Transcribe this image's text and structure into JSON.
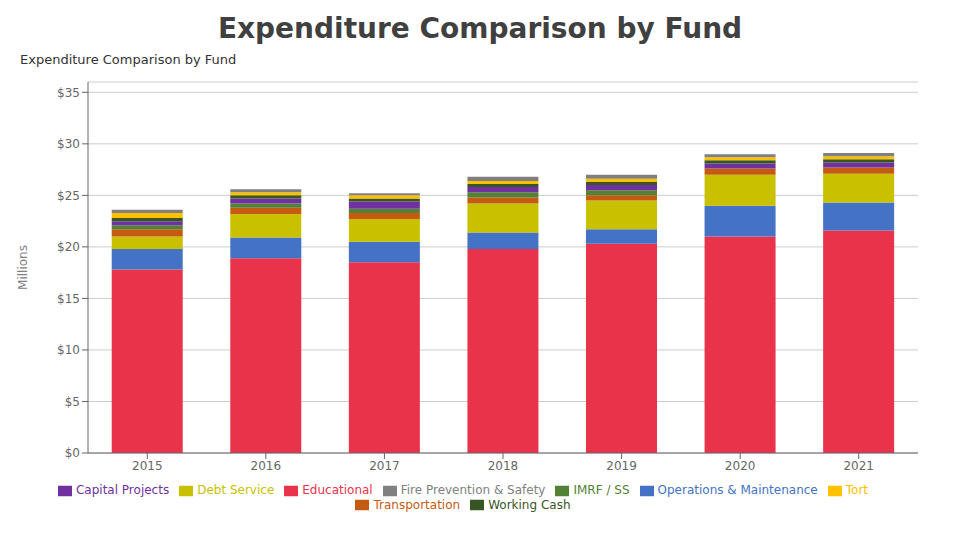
{
  "chart_data": {
    "type": "bar",
    "stacked": true,
    "title": "Expenditure Comparison by Fund",
    "subtitle": "Expenditure Comparison by Fund",
    "y_label": "Millions",
    "categories": [
      "2015",
      "2016",
      "2017",
      "2018",
      "2019",
      "2020",
      "2021"
    ],
    "series": [
      {
        "name": "Educational",
        "color": "#E8334A",
        "values": [
          17.8,
          18.9,
          18.5,
          19.8,
          20.3,
          21.0,
          21.6
        ]
      },
      {
        "name": "Operations & Maintenance",
        "color": "#4472C4",
        "values": [
          2.0,
          2.0,
          2.0,
          1.6,
          1.4,
          3.0,
          2.7
        ]
      },
      {
        "name": "Debt Service",
        "color": "#C9C000",
        "values": [
          1.2,
          2.3,
          2.2,
          2.8,
          2.8,
          3.0,
          2.8
        ]
      },
      {
        "name": "Transportation",
        "color": "#C55A11",
        "values": [
          0.7,
          0.6,
          0.6,
          0.6,
          0.5,
          0.6,
          0.6
        ]
      },
      {
        "name": "IMRF / SS",
        "color": "#538135",
        "values": [
          0.4,
          0.4,
          0.4,
          0.5,
          0.5,
          0.0,
          0.0
        ]
      },
      {
        "name": "Capital Projects",
        "color": "#7030A0",
        "values": [
          0.4,
          0.5,
          0.7,
          0.5,
          0.5,
          0.5,
          0.5
        ]
      },
      {
        "name": "Working Cash",
        "color": "#375623",
        "values": [
          0.3,
          0.3,
          0.3,
          0.3,
          0.3,
          0.3,
          0.3
        ]
      },
      {
        "name": "Tort",
        "color": "#FFC000",
        "values": [
          0.5,
          0.3,
          0.3,
          0.3,
          0.3,
          0.3,
          0.3
        ]
      },
      {
        "name": "Fire Prevention & Safety",
        "color": "#808080",
        "values": [
          0.3,
          0.3,
          0.2,
          0.4,
          0.4,
          0.3,
          0.3
        ]
      }
    ],
    "ylim": [
      0,
      36
    ],
    "yticks": [
      {
        "value": 0,
        "label": "$0"
      },
      {
        "value": 5,
        "label": "$5"
      },
      {
        "value": 10,
        "label": "$10"
      },
      {
        "value": 15,
        "label": "$15"
      },
      {
        "value": 20,
        "label": "$20"
      },
      {
        "value": 25,
        "label": "$25"
      },
      {
        "value": 30,
        "label": "$30"
      },
      {
        "value": 35,
        "label": "$35"
      }
    ],
    "grid": true,
    "legend": "bottom"
  }
}
